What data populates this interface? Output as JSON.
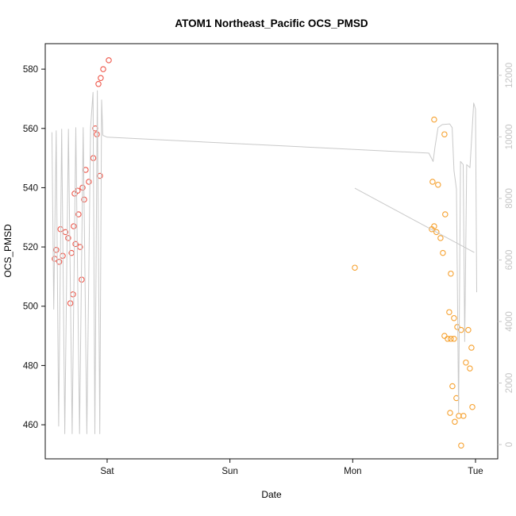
{
  "chart_data": {
    "type": "scatter",
    "title": "ATOM1 Northeast_Pacific OCS_PMSD",
    "xlabel": "Date",
    "ylabel": "OCS_PMSD",
    "grid": false,
    "legend": "none",
    "x_axis": {
      "ticks": [
        {
          "label": "Sat",
          "x": 1
        },
        {
          "label": "Sun",
          "x": 2
        },
        {
          "label": "Mon",
          "x": 3
        },
        {
          "label": "Tue",
          "x": 4
        }
      ],
      "range": [
        0.496,
        4.181
      ]
    },
    "y_left": {
      "ticks": [
        460,
        480,
        500,
        520,
        540,
        560,
        580
      ],
      "range": [
        448.5,
        588.6
      ],
      "color": "#111111"
    },
    "y_right": {
      "ticks": [
        0,
        2000,
        4000,
        6000,
        8000,
        10000,
        12000
      ],
      "range": [
        -464,
        13029
      ],
      "color": "#c6c6c6"
    },
    "series": [
      {
        "name": "ocs-pmsd-early-points",
        "type": "points",
        "axis": "left",
        "color": "#ee574a",
        "points": [
          [
            1.013,
            583
          ],
          [
            0.968,
            580
          ],
          [
            0.948,
            577
          ],
          [
            0.929,
            575
          ],
          [
            0.903,
            560
          ],
          [
            0.916,
            558
          ],
          [
            0.887,
            550
          ],
          [
            0.942,
            544
          ],
          [
            0.825,
            546
          ],
          [
            0.851,
            542
          ],
          [
            0.8,
            540
          ],
          [
            0.76,
            539
          ],
          [
            0.735,
            538
          ],
          [
            0.813,
            536
          ],
          [
            0.767,
            531
          ],
          [
            0.728,
            527
          ],
          [
            0.62,
            526
          ],
          [
            0.66,
            525
          ],
          [
            0.683,
            523
          ],
          [
            0.742,
            521
          ],
          [
            0.78,
            520
          ],
          [
            0.71,
            518
          ],
          [
            0.586,
            519
          ],
          [
            0.638,
            517
          ],
          [
            0.573,
            516
          ],
          [
            0.61,
            515
          ],
          [
            0.793,
            509
          ],
          [
            0.722,
            504
          ],
          [
            0.7,
            501
          ]
        ]
      },
      {
        "name": "ocs-pmsd-late-points",
        "type": "points",
        "axis": "left",
        "color": "#f6a12f",
        "points": [
          [
            3.017,
            513
          ],
          [
            3.663,
            563
          ],
          [
            3.747,
            558
          ],
          [
            3.65,
            542
          ],
          [
            3.695,
            541
          ],
          [
            3.753,
            531
          ],
          [
            3.663,
            527
          ],
          [
            3.644,
            526
          ],
          [
            3.682,
            525
          ],
          [
            3.715,
            523
          ],
          [
            3.734,
            518
          ],
          [
            3.799,
            511
          ],
          [
            3.786,
            498
          ],
          [
            3.825,
            496
          ],
          [
            3.851,
            493
          ],
          [
            3.883,
            492
          ],
          [
            3.747,
            490
          ],
          [
            3.773,
            489
          ],
          [
            3.799,
            489
          ],
          [
            3.825,
            489
          ],
          [
            3.941,
            492
          ],
          [
            3.967,
            486
          ],
          [
            3.922,
            481
          ],
          [
            3.954,
            479
          ],
          [
            3.812,
            473
          ],
          [
            3.844,
            469
          ],
          [
            3.793,
            464
          ],
          [
            3.864,
            463
          ],
          [
            3.902,
            463
          ],
          [
            3.974,
            466
          ],
          [
            3.831,
            461
          ],
          [
            3.883,
            453
          ]
        ]
      },
      {
        "name": "reference-trace-main",
        "type": "line",
        "axis": "right",
        "color": "#c9c9c9",
        "points": [
          [
            0.55,
            10150
          ],
          [
            0.565,
            4400
          ],
          [
            0.585,
            10200
          ],
          [
            0.605,
            600
          ],
          [
            0.63,
            10250
          ],
          [
            0.655,
            350
          ],
          [
            0.685,
            10250
          ],
          [
            0.715,
            350
          ],
          [
            0.745,
            10300
          ],
          [
            0.775,
            350
          ],
          [
            0.805,
            10300
          ],
          [
            0.835,
            350
          ],
          [
            0.865,
            10300
          ],
          [
            0.885,
            11450
          ],
          [
            0.9,
            350
          ],
          [
            0.92,
            11500
          ],
          [
            0.94,
            350
          ],
          [
            0.955,
            11200
          ],
          [
            0.965,
            10050
          ],
          [
            1.0,
            9990
          ],
          [
            3.62,
            9470
          ],
          [
            3.655,
            9200
          ],
          [
            3.67,
            9680
          ],
          [
            3.695,
            10300
          ],
          [
            3.73,
            10400
          ],
          [
            3.79,
            10420
          ],
          [
            3.81,
            10300
          ],
          [
            3.825,
            8900
          ],
          [
            3.845,
            8300
          ],
          [
            3.862,
            1030
          ],
          [
            3.878,
            9200
          ],
          [
            3.9,
            9100
          ],
          [
            3.912,
            3350
          ],
          [
            3.928,
            9100
          ],
          [
            3.955,
            9000
          ],
          [
            3.985,
            11100
          ],
          [
            4.0,
            10900
          ],
          [
            4.01,
            4950
          ]
        ]
      },
      {
        "name": "reference-trace-secondary",
        "type": "line",
        "axis": "right",
        "color": "#c9c9c9",
        "points": [
          [
            3.017,
            8330
          ],
          [
            3.99,
            6240
          ]
        ]
      }
    ]
  }
}
